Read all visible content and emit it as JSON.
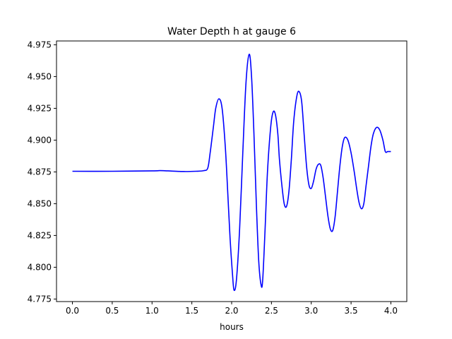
{
  "chart_data": {
    "type": "line",
    "title": "Water Depth h at gauge 6",
    "xlabel": "hours",
    "ylabel": "",
    "xlim": [
      -0.2,
      4.2
    ],
    "ylim": [
      4.773,
      4.978
    ],
    "x_ticks": [
      0.0,
      0.5,
      1.0,
      1.5,
      2.0,
      2.5,
      3.0,
      3.5,
      4.0
    ],
    "x_tick_labels": [
      "0.0",
      "0.5",
      "1.0",
      "1.5",
      "2.0",
      "2.5",
      "3.0",
      "3.5",
      "4.0"
    ],
    "y_ticks": [
      4.775,
      4.8,
      4.825,
      4.85,
      4.875,
      4.9,
      4.925,
      4.95,
      4.975
    ],
    "y_tick_labels": [
      "4.775",
      "4.800",
      "4.825",
      "4.850",
      "4.875",
      "4.900",
      "4.925",
      "4.950",
      "4.975"
    ],
    "grid": false,
    "series": [
      {
        "color": "#0000ff",
        "x": [
          0.0,
          0.5,
          1.0,
          1.1,
          1.2,
          1.4,
          1.55,
          1.65,
          1.7,
          1.73,
          1.77,
          1.8,
          1.84,
          1.88,
          1.92,
          1.95,
          1.98,
          2.01,
          2.03,
          2.06,
          2.1,
          2.14,
          2.18,
          2.22,
          2.25,
          2.28,
          2.31,
          2.34,
          2.37,
          2.39,
          2.42,
          2.45,
          2.49,
          2.52,
          2.55,
          2.58,
          2.6,
          2.63,
          2.66,
          2.69,
          2.72,
          2.75,
          2.78,
          2.82,
          2.85,
          2.88,
          2.91,
          2.94,
          2.97,
          3.0,
          3.03,
          3.06,
          3.09,
          3.12,
          3.15,
          3.18,
          3.21,
          3.24,
          3.27,
          3.3,
          3.33,
          3.36,
          3.39,
          3.42,
          3.46,
          3.5,
          3.54,
          3.57,
          3.6,
          3.63,
          3.66,
          3.69,
          3.72,
          3.75,
          3.78,
          3.82,
          3.86,
          3.9,
          3.93,
          3.96,
          3.98,
          4.0
        ],
        "y": [
          4.8755,
          4.8755,
          4.8758,
          4.876,
          4.8758,
          4.8753,
          4.8755,
          4.876,
          4.878,
          4.89,
          4.91,
          4.925,
          4.9325,
          4.925,
          4.895,
          4.86,
          4.823,
          4.795,
          4.782,
          4.79,
          4.83,
          4.89,
          4.945,
          4.9675,
          4.95,
          4.905,
          4.85,
          4.805,
          4.786,
          4.79,
          4.83,
          4.875,
          4.91,
          4.922,
          4.92,
          4.905,
          4.885,
          4.865,
          4.85,
          4.848,
          4.86,
          4.885,
          4.915,
          4.935,
          4.938,
          4.93,
          4.905,
          4.88,
          4.865,
          4.862,
          4.868,
          4.877,
          4.881,
          4.88,
          4.87,
          4.855,
          4.84,
          4.83,
          4.829,
          4.84,
          4.86,
          4.88,
          4.895,
          4.902,
          4.9,
          4.89,
          4.875,
          4.862,
          4.851,
          4.846,
          4.85,
          4.865,
          4.88,
          4.895,
          4.905,
          4.91,
          4.908,
          4.9,
          4.891,
          4.891,
          4.891,
          4.891
        ]
      }
    ]
  }
}
